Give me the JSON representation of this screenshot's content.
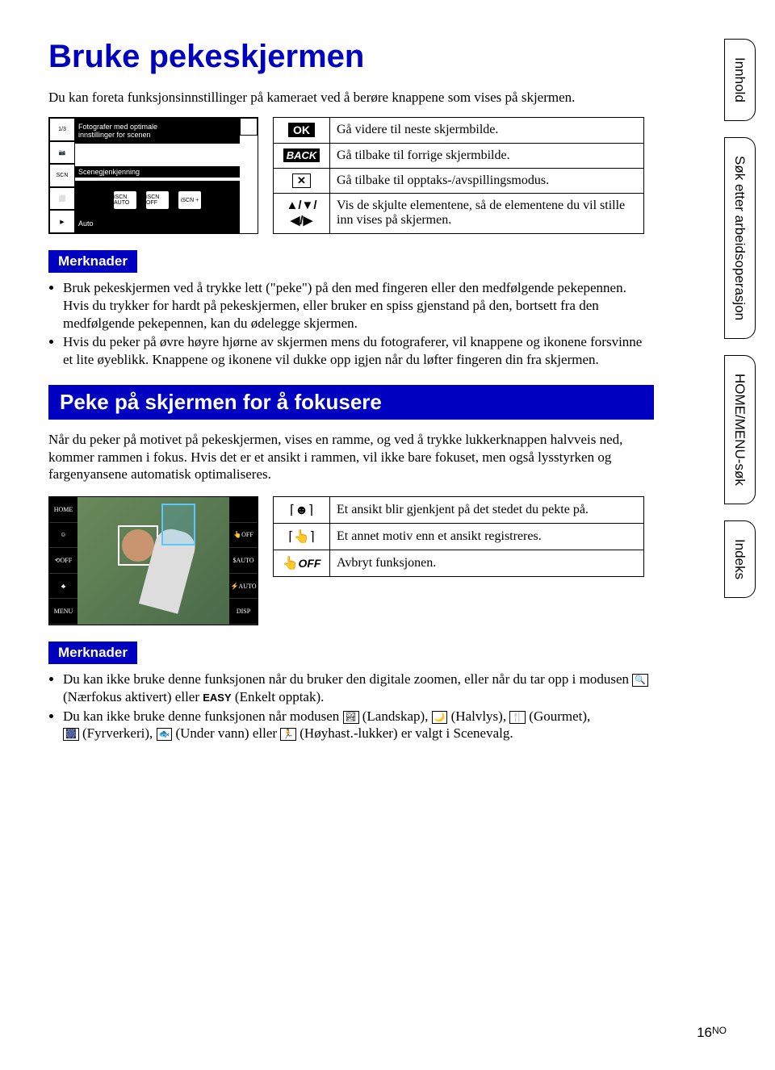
{
  "title": "Bruke pekeskjermen",
  "intro": "Du kan foreta funksjonsinnstillinger på kameraet ved å berøre knappene som vises på skjermen.",
  "cameraScreen1": {
    "line1": "Fotografer med optimale",
    "line2": "innstillinger for scenen",
    "section": "Scenegjenkjenning",
    "bottom": "Auto",
    "left": {
      "a": "1/3",
      "b": "📷",
      "c": "SCN",
      "d": "⬜",
      "e": "▶"
    },
    "icons": {
      "a": "iSCN AUTO",
      "b": "iSCN OFF",
      "c": "iSCN +"
    }
  },
  "table1": {
    "r1": {
      "label": "OK",
      "desc": "Gå videre til neste skjermbilde."
    },
    "r2": {
      "label": "BACK",
      "desc": "Gå tilbake til forrige skjermbilde."
    },
    "r3": {
      "label": "✕",
      "desc": "Gå tilbake til opptaks-/avspillingsmodus."
    },
    "r4": {
      "label": "▲/▼/◀/▶",
      "desc": "Vis de skjulte elementene, så de elementene du vil stille inn vises på skjermen."
    }
  },
  "notesHeader": "Merknader",
  "notes1": {
    "a": "Bruk pekeskjermen ved å trykke lett (\"peke\") på den med fingeren eller den medfølgende pekepennen. Hvis du trykker for hardt på pekeskjermen, eller bruker en spiss gjenstand på den, bortsett fra den medfølgende pekepennen, kan du ødelegge skjermen.",
    "b": "Hvis du peker på øvre høyre hjørne av skjermen mens du fotograferer, vil knappene og ikonene forsvinne et lite øyeblikk. Knappene og ikonene vil dukke opp igjen når du løfter fingeren din fra skjermen."
  },
  "sectionHeader": "Peke på skjermen for å fokusere",
  "para2": "Når du peker på motivet på pekeskjermen, vises en ramme, og ved å trykke lukkerknappen halvveis ned, kommer rammen i fokus. Hvis det er et ansikt i rammen, vil ikke bare fokuset, men også lysstyrken og fargenyansene automatisk optimaliseres.",
  "cameraScreen2": {
    "left": {
      "a": "HOME",
      "b": "☺",
      "c": "⟲OFF",
      "d": "♣",
      "e": "MENU"
    },
    "right": {
      "a": "",
      "b": "👆OFF",
      "c": "$AUTO",
      "d": "⚡AUTO",
      "e": "DISP"
    }
  },
  "table2": {
    "r1": {
      "desc": "Et ansikt blir gjenkjent på det stedet du pekte på."
    },
    "r2": {
      "desc": "Et annet motiv enn et ansikt registreres."
    },
    "r3": {
      "label": "OFF",
      "desc": "Avbryt funksjonen."
    }
  },
  "notes2": {
    "a_pre": "Du kan ikke bruke denne funksjonen når du bruker den digitale zoomen, eller når du tar opp i modusen ",
    "a_mid": " (Nærfokus aktivert) eller ",
    "a_easy": "EASY",
    "a_post": " (Enkelt opptak).",
    "b_pre": "Du kan ikke bruke denne funksjonen når modusen ",
    "b_1": " (Landskap), ",
    "b_2": " (Halvlys), ",
    "b_3": " (Gourmet), ",
    "b_4": " (Fyrverkeri), ",
    "b_5": " (Under vann) eller ",
    "b_6": " (Høyhast.-lukker) er valgt i Scenevalg."
  },
  "sideTabs": {
    "a": "Innhold",
    "b": "Søk etter arbeidsoperasjon",
    "c": "HOME/MENU-søk",
    "d": "Indeks"
  },
  "pageNum": "16",
  "pageNumSuffix": "NO"
}
